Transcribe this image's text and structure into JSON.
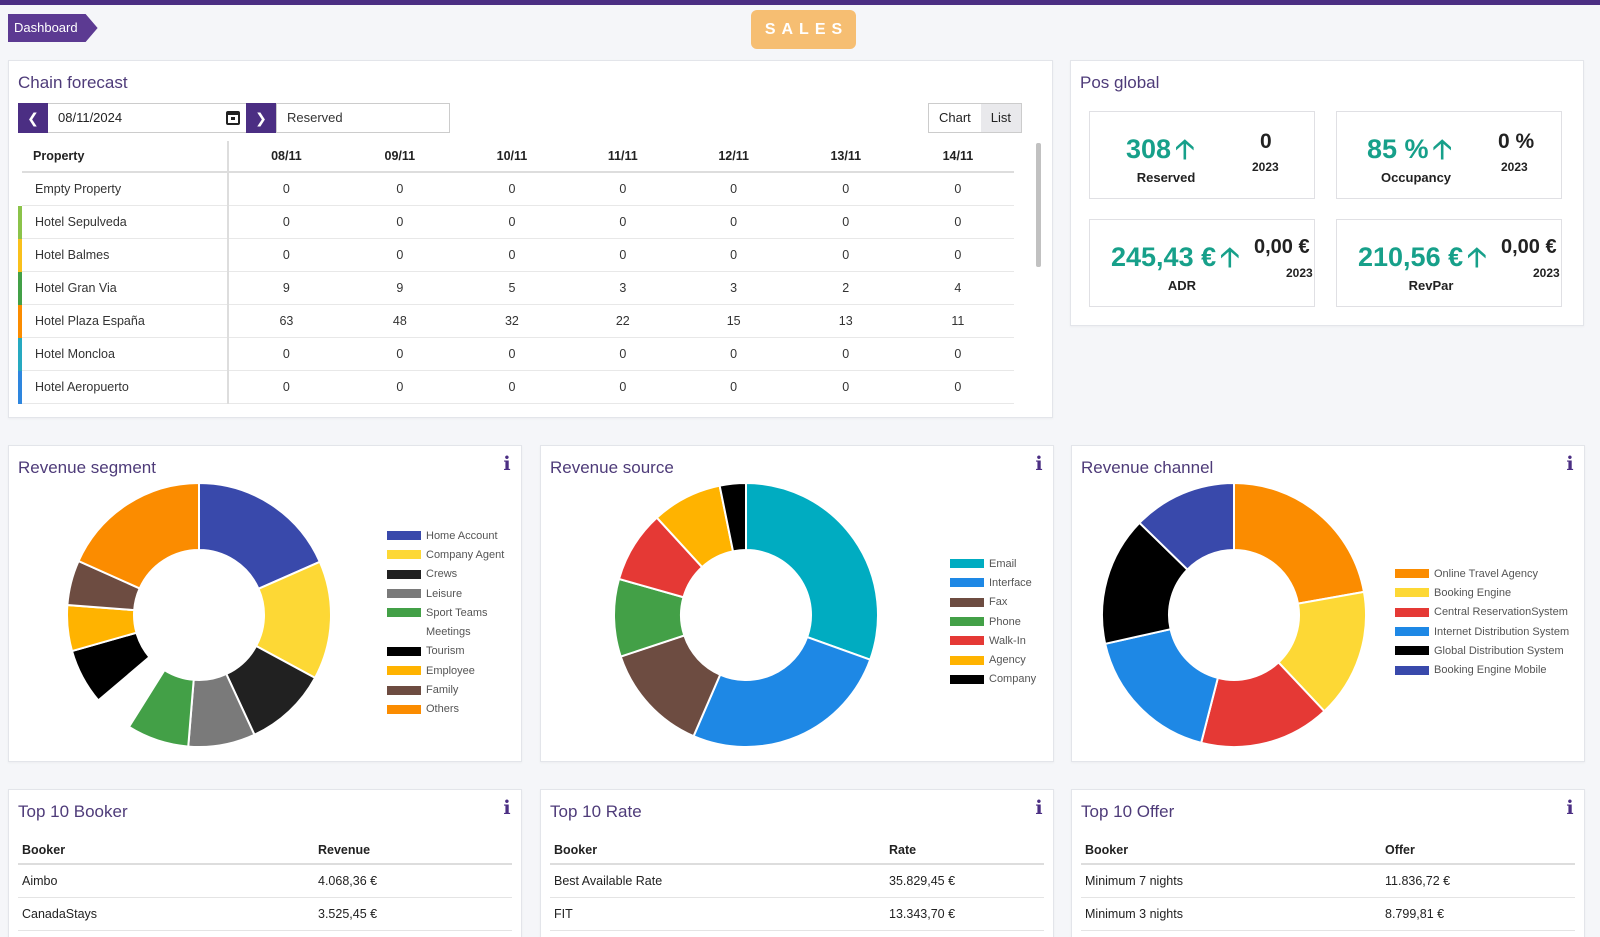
{
  "header": {
    "breadcrumb": "Dashboard",
    "badge": "SALES"
  },
  "chain_forecast": {
    "title": "Chain forecast",
    "date": "08/11/2024",
    "metric": "Reserved",
    "view_chart": "Chart",
    "view_list": "List",
    "columns": [
      "Property",
      "08/11",
      "09/11",
      "10/11",
      "11/11",
      "12/11",
      "13/11",
      "14/11"
    ],
    "rows": [
      {
        "name": "Empty Property",
        "color": "",
        "values": [
          "0",
          "0",
          "0",
          "0",
          "0",
          "0",
          "0"
        ]
      },
      {
        "name": "Hotel Sepulveda",
        "color": "#8bc34a",
        "values": [
          "0",
          "0",
          "0",
          "0",
          "0",
          "0",
          "0"
        ]
      },
      {
        "name": "Hotel Balmes",
        "color": "#f9c01c",
        "values": [
          "0",
          "0",
          "0",
          "0",
          "0",
          "0",
          "0"
        ]
      },
      {
        "name": "Hotel Gran Via",
        "color": "#43a047",
        "values": [
          "9",
          "9",
          "5",
          "3",
          "3",
          "2",
          "4"
        ]
      },
      {
        "name": "Hotel Plaza España",
        "color": "#fb8c00",
        "values": [
          "63",
          "48",
          "32",
          "22",
          "15",
          "13",
          "11"
        ]
      },
      {
        "name": "Hotel Moncloa",
        "color": "#26a9c0",
        "values": [
          "0",
          "0",
          "0",
          "0",
          "0",
          "0",
          "0"
        ]
      },
      {
        "name": "Hotel Aeropuerto",
        "color": "#2e86de",
        "values": [
          "0",
          "0",
          "0",
          "0",
          "0",
          "0",
          "0"
        ]
      }
    ]
  },
  "pos_global": {
    "title": "Pos global",
    "kpis": [
      {
        "value": "308",
        "label": "Reserved",
        "prev": "0",
        "year": "2023"
      },
      {
        "value": "85 %",
        "label": "Occupancy",
        "prev": "0 %",
        "year": "2023"
      },
      {
        "value": "245,43 €",
        "label": "ADR",
        "prev": "0,00 €",
        "year": "2023"
      },
      {
        "value": "210,56 €",
        "label": "RevPar",
        "prev": "0,00 €",
        "year": "2023"
      }
    ]
  },
  "colors": {
    "accent": "#4b2e83",
    "positive": "#17a08a"
  },
  "revenue_segment": {
    "title": "Revenue segment"
  },
  "revenue_source": {
    "title": "Revenue source"
  },
  "revenue_channel": {
    "title": "Revenue channel"
  },
  "chart_data": [
    {
      "type": "pie",
      "title": "Revenue segment",
      "categories": [
        "Home Account",
        "Company Agent",
        "Crews",
        "Leisure",
        "Sport Teams",
        "Meetings",
        "Tourism",
        "Employee",
        "Family",
        "Others"
      ],
      "colors": [
        "#3949ab",
        "#fdd835",
        "#212121",
        "#7a7a7a",
        "#43a047",
        "",
        "#000000",
        "#ffb300",
        "#6d4c41",
        "#fb8c00"
      ],
      "values": [
        18.4,
        14.5,
        10.2,
        8.2,
        7.6,
        4.9,
        6.8,
        5.6,
        5.5,
        18.3
      ],
      "hidden": [
        5
      ]
    },
    {
      "type": "pie",
      "title": "Revenue source",
      "categories": [
        "Email",
        "Interface",
        "Fax",
        "Phone",
        "Walk-In",
        "Agency",
        "Company"
      ],
      "colors": [
        "#00acc1",
        "#1e88e5",
        "#6d4c41",
        "#43a047",
        "#e53935",
        "#ffb300",
        "#000000"
      ],
      "values": [
        30.5,
        26.0,
        13.4,
        9.5,
        8.8,
        8.6,
        3.2
      ]
    },
    {
      "type": "pie",
      "title": "Revenue channel",
      "categories": [
        "Online Travel Agency",
        "Booking Engine",
        "Central ReservationSystem",
        "Internet Distribution System",
        "Global Distribution System",
        "Booking Engine Mobile"
      ],
      "colors": [
        "#fb8c00",
        "#fdd835",
        "#e53935",
        "#1e88e5",
        "#000000",
        "#3949ab"
      ],
      "values": [
        22.2,
        15.8,
        16.0,
        17.5,
        15.8,
        12.7
      ]
    }
  ],
  "top_booker": {
    "title": "Top 10 Booker",
    "headers": [
      "Booker",
      "Revenue"
    ],
    "rows": [
      [
        "Aimbo",
        "4.068,36 €"
      ],
      [
        "CanadaStays",
        "3.525,45 €"
      ]
    ]
  },
  "top_rate": {
    "title": "Top 10 Rate",
    "headers": [
      "Booker",
      "Rate"
    ],
    "rows": [
      [
        "Best Available Rate",
        "35.829,45 €"
      ],
      [
        "FIT",
        "13.343,70 €"
      ]
    ]
  },
  "top_offer": {
    "title": "Top 10 Offer",
    "headers": [
      "Booker",
      "Offer"
    ],
    "rows": [
      [
        "Minimum 7 nights",
        "11.836,72 €"
      ],
      [
        "Minimum 3 nights",
        "8.799,81 €"
      ]
    ]
  }
}
